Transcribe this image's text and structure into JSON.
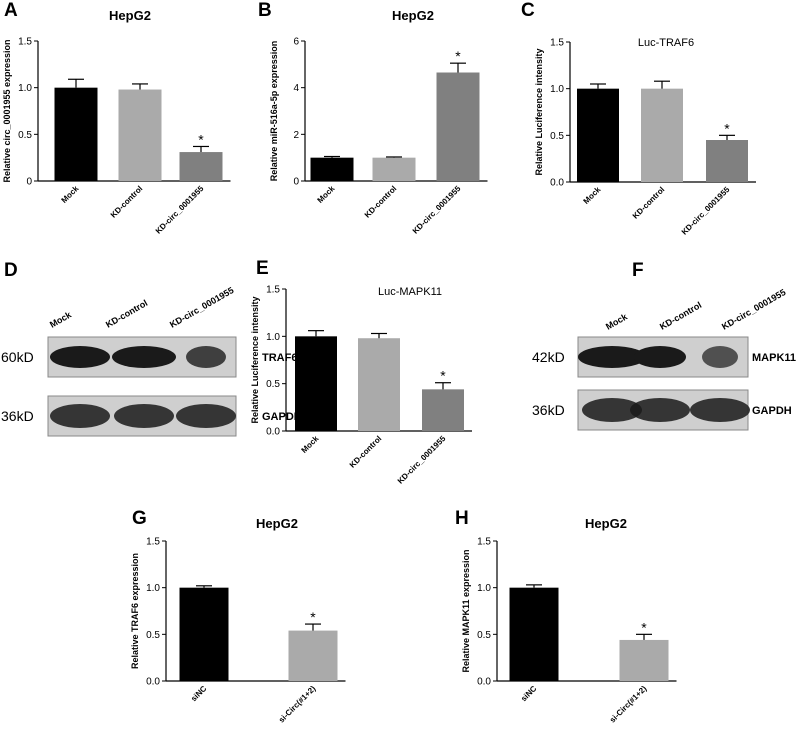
{
  "chart_data": [
    {
      "panel": "A",
      "type": "bar",
      "title": "HepG2",
      "ylabel": "Relative circ_0001955  expression",
      "categories": [
        "Mock",
        "KD-control",
        "KD-circ_0001955"
      ],
      "values": [
        1.0,
        0.98,
        0.31
      ],
      "errors": [
        0.09,
        0.06,
        0.06
      ],
      "markers": [
        null,
        null,
        "*"
      ],
      "colors": [
        "#000000",
        "#aaaaaa",
        "#808080"
      ],
      "ylim": [
        0,
        1.5
      ],
      "yticks": [
        0,
        0.5,
        {
          "value": 1.0,
          "label": "1.0"
        },
        1.5
      ]
    },
    {
      "panel": "B",
      "type": "bar",
      "title": "HepG2",
      "ylabel": "Relative miR-516a-5p expression",
      "categories": [
        "Mock",
        "KD-control",
        "KD-circ_0001955"
      ],
      "values": [
        1.0,
        1.0,
        4.65
      ],
      "errors": [
        0.05,
        0.03,
        0.4
      ],
      "markers": [
        null,
        null,
        "*"
      ],
      "colors": [
        "#000000",
        "#aaaaaa",
        "#808080"
      ],
      "ylim": [
        0,
        6
      ],
      "yticks": [
        0,
        2,
        4,
        6
      ]
    },
    {
      "panel": "C",
      "type": "bar",
      "title": "Luc-TRAF6",
      "ylabel": "Relative Luciference intensity",
      "categories": [
        "Mock",
        "KD-control",
        "KD-circ_0001955"
      ],
      "values": [
        1.0,
        1.0,
        0.45
      ],
      "errors": [
        0.05,
        0.08,
        0.05
      ],
      "markers": [
        null,
        null,
        "*"
      ],
      "colors": [
        "#000000",
        "#aaaaaa",
        "#808080"
      ],
      "ylim": [
        0,
        1.5
      ],
      "yticks": [
        {
          "value": 0,
          "label": "0.0"
        },
        0.5,
        {
          "value": 1.0,
          "label": "1.0"
        },
        1.5
      ]
    },
    {
      "panel": "E",
      "type": "bar",
      "title": "Luc-MAPK11",
      "ylabel": "Relative Luciference intensity",
      "categories": [
        "Mock",
        "KD-control",
        "KD-circ_0001955"
      ],
      "values": [
        1.0,
        0.98,
        0.44
      ],
      "errors": [
        0.06,
        0.05,
        0.07
      ],
      "markers": [
        null,
        null,
        "*"
      ],
      "colors": [
        "#000000",
        "#aaaaaa",
        "#808080"
      ],
      "ylim": [
        0,
        1.5
      ],
      "yticks": [
        {
          "value": 0,
          "label": "0.0"
        },
        0.5,
        {
          "value": 1.0,
          "label": "1.0"
        },
        1.5
      ]
    },
    {
      "panel": "G",
      "type": "bar",
      "title": "HepG2",
      "ylabel": "Relative TRAF6 expression",
      "categories": [
        "siNC",
        "si-Circ(#1+2)"
      ],
      "values": [
        1.0,
        0.54
      ],
      "errors": [
        0.02,
        0.07
      ],
      "markers": [
        null,
        "*"
      ],
      "colors": [
        "#000000",
        "#aaaaaa"
      ],
      "ylim": [
        0,
        1.5
      ],
      "yticks": [
        {
          "value": 0,
          "label": "0.0"
        },
        0.5,
        {
          "value": 1.0,
          "label": "1.0"
        },
        1.5
      ]
    },
    {
      "panel": "H",
      "type": "bar",
      "title": "HepG2",
      "ylabel": "Relative MAPK11 expression",
      "categories": [
        "siNC",
        "si-Circ(#1+2)"
      ],
      "values": [
        1.0,
        0.44
      ],
      "errors": [
        0.03,
        0.06
      ],
      "markers": [
        null,
        "*"
      ],
      "colors": [
        "#000000",
        "#aaaaaa"
      ],
      "ylim": [
        0,
        1.5
      ],
      "yticks": [
        {
          "value": 0,
          "label": "0.0"
        },
        0.5,
        {
          "value": 1.0,
          "label": "1.0"
        },
        1.5
      ]
    }
  ],
  "blots": [
    {
      "panel": "D",
      "lanes": [
        "Mock",
        "KD-control",
        "KD-circ_0001955"
      ],
      "rows": [
        {
          "size": "60kD",
          "protein": "TRAF6"
        },
        {
          "size": "36kD",
          "protein": "GAPDH"
        }
      ]
    },
    {
      "panel": "F",
      "lanes": [
        "Mock",
        "KD-control",
        "KD-circ_0001955"
      ],
      "rows": [
        {
          "size": "42kD",
          "protein": "MAPK11"
        },
        {
          "size": "36kD",
          "protein": "GAPDH"
        }
      ]
    }
  ]
}
